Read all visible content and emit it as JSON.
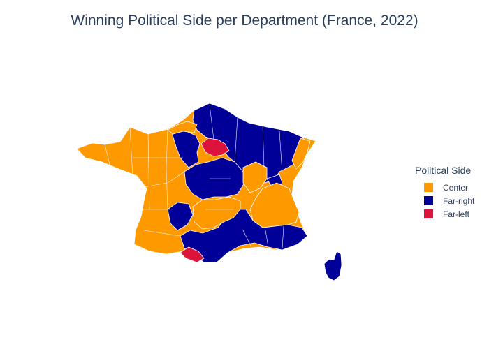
{
  "title": "Winning Political Side per Department (France, 2022)",
  "legend": {
    "title": "Political Side",
    "items": [
      {
        "label": "Center",
        "color": "#ff9900"
      },
      {
        "label": "Far-right",
        "color": "#000099"
      },
      {
        "label": "Far-left",
        "color": "#dc143c"
      }
    ]
  },
  "colors": {
    "center": "#ff9900",
    "far_right": "#000099",
    "far_left": "#dc143c",
    "border": "#ffffff",
    "text": "#2a3f5f"
  }
}
